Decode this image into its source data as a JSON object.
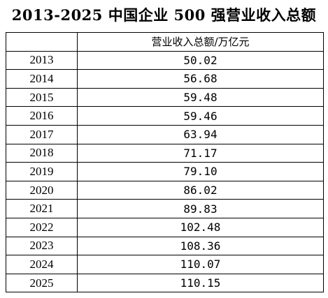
{
  "title": "2013-2025 中国企业 500 强营业收入总额",
  "chart_data": {
    "type": "table",
    "title": "2013-2025 中国企业 500 强营业收入总额",
    "columns": [
      "",
      "营业收入总额/万亿元"
    ],
    "rows": [
      {
        "year": "2013",
        "value": "50.02"
      },
      {
        "year": "2014",
        "value": "56.68"
      },
      {
        "year": "2015",
        "value": "59.48"
      },
      {
        "year": "2016",
        "value": "59.46"
      },
      {
        "year": "2017",
        "value": "63.94"
      },
      {
        "year": "2018",
        "value": "71.17"
      },
      {
        "year": "2019",
        "value": "79.10"
      },
      {
        "year": "2020",
        "value": "86.02"
      },
      {
        "year": "2021",
        "value": "89.83"
      },
      {
        "year": "2022",
        "value": "102.48"
      },
      {
        "year": "2023",
        "value": "108.36"
      },
      {
        "year": "2024",
        "value": "110.07"
      },
      {
        "year": "2025",
        "value": "110.15"
      }
    ]
  }
}
